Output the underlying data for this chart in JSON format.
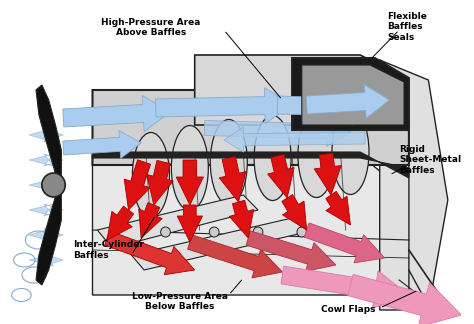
{
  "bg_color": "#ffffff",
  "fig_width": 4.74,
  "fig_height": 3.24,
  "dpi": 100,
  "blue_arrow_color": "#aaccee",
  "blue_arrow_color2": "#88aacc",
  "red_arrow_color": "#dd1111",
  "red_arrow_color2": "#cc2222",
  "pink_arrow_color": "#ee99bb",
  "pink_arrow_color2": "#dd77aa",
  "engine_fill": "#e0e0e0",
  "engine_fill2": "#c8c8c8",
  "engine_fill3": "#d4d4d4",
  "dark_fill": "#888888",
  "line_color": "#222222",
  "label_fontsize": 6.0,
  "label_fontweight": "bold",
  "labels": {
    "high_pressure": "High-Pressure Area\nAbove Baffles",
    "flexible_baffles": "Flexible\nBaffles\nSeals",
    "rigid_baffles": "Rigid\nSheet-Metal\nBaffles",
    "inter_cylinder": "Inter-Cylinder\nBaffles",
    "low_pressure": "Low-Pressure Area\nBelow Baffles",
    "cowl_flaps": "Cowl Flaps"
  }
}
